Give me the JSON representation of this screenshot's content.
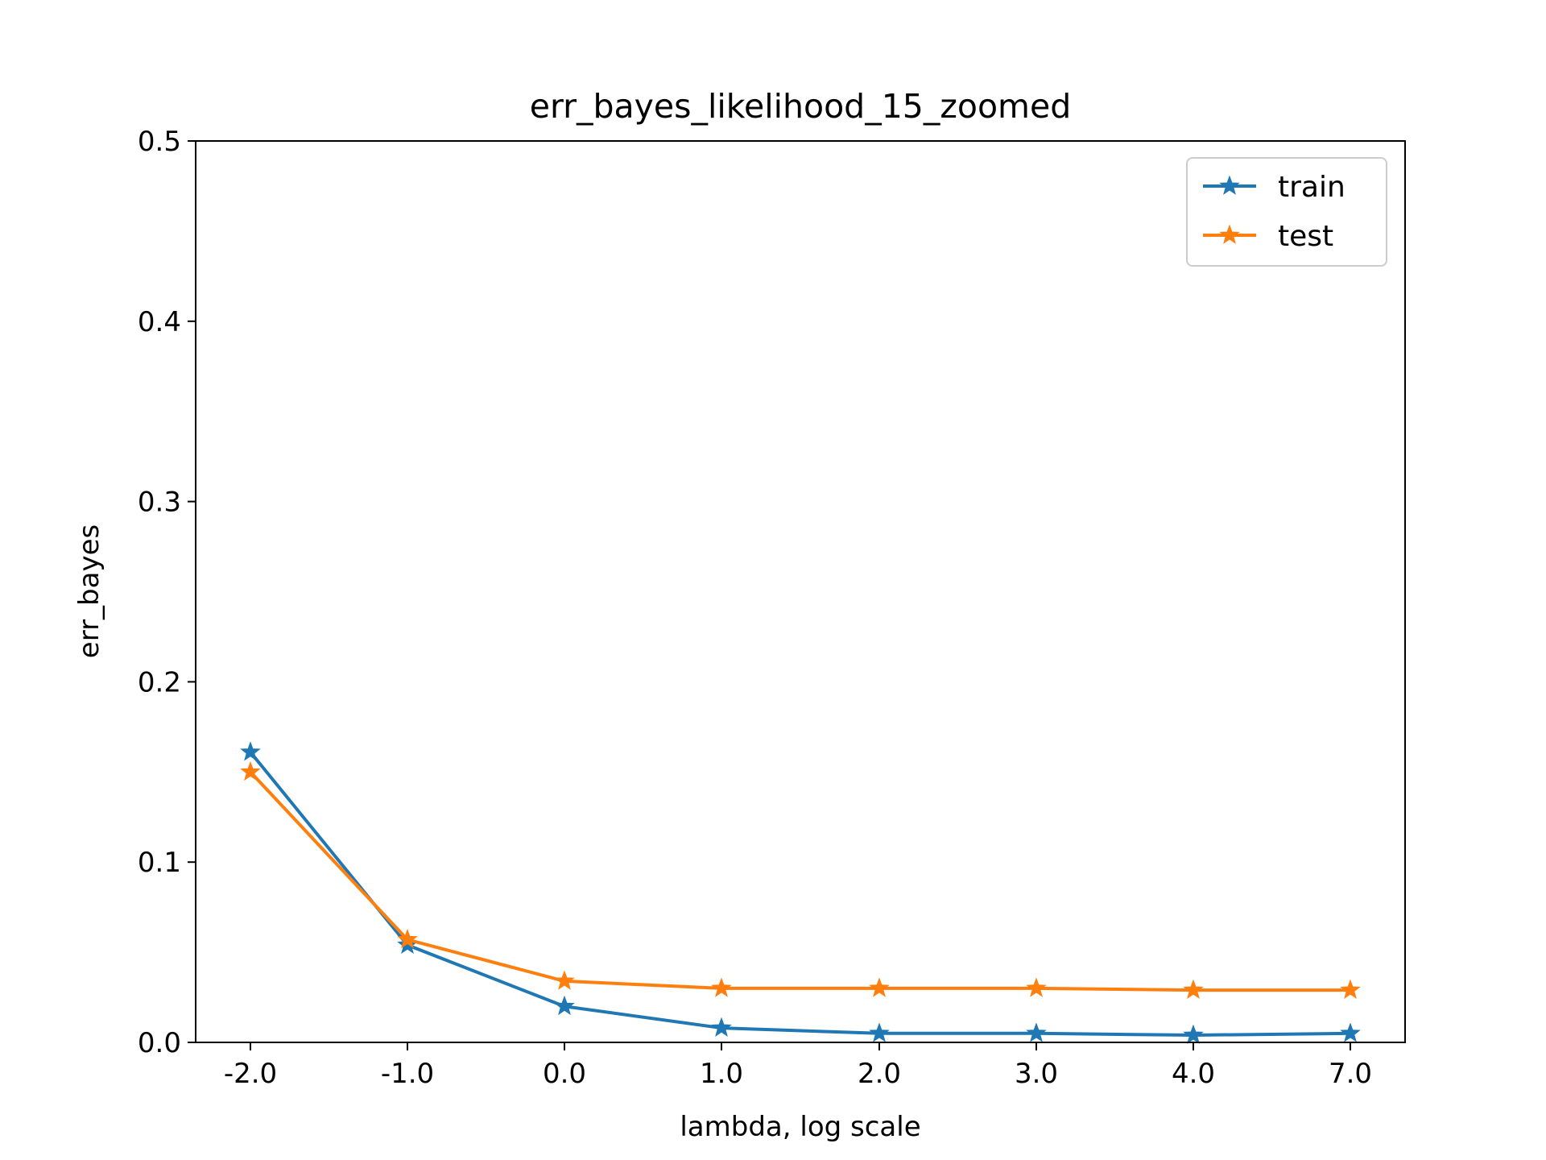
{
  "chart_data": {
    "type": "line",
    "title": "err_bayes_likelihood_15_zoomed",
    "xlabel": "lambda, log scale",
    "ylabel": "err_bayes",
    "categories": [
      "-2.0",
      "-1.0",
      "0.0",
      "1.0",
      "2.0",
      "3.0",
      "4.0",
      "7.0"
    ],
    "ylim": [
      0,
      0.5
    ],
    "yticks": [
      "0.0",
      "0.1",
      "0.2",
      "0.3",
      "0.4",
      "0.5"
    ],
    "grid": false,
    "legend_position": "top-right",
    "marker": "star",
    "series": [
      {
        "name": "train",
        "color": "#1f77b4",
        "values": [
          0.161,
          0.054,
          0.02,
          0.008,
          0.005,
          0.005,
          0.004,
          0.005
        ]
      },
      {
        "name": "test",
        "color": "#ff7f0e",
        "values": [
          0.15,
          0.057,
          0.034,
          0.03,
          0.03,
          0.03,
          0.029,
          0.029
        ]
      }
    ]
  }
}
